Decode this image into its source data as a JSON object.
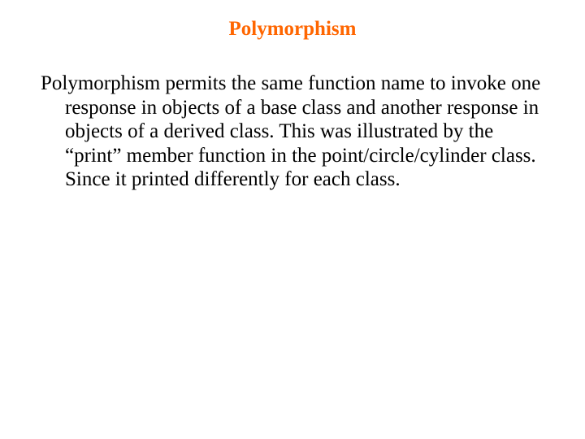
{
  "slide": {
    "title": "Polymorphism",
    "body": "Polymorphism permits the same function name to invoke one response in objects of a base class and another response in objects of a derived class. This was illustrated by the “print” member function in the point/circle/cylinder class. Since it printed differently for each class.",
    "title_color": "#ff6600",
    "body_color": "#000000",
    "background_color": "#ffffff",
    "title_fontsize": 25,
    "body_fontsize": 25,
    "font_family": "Times New Roman"
  }
}
